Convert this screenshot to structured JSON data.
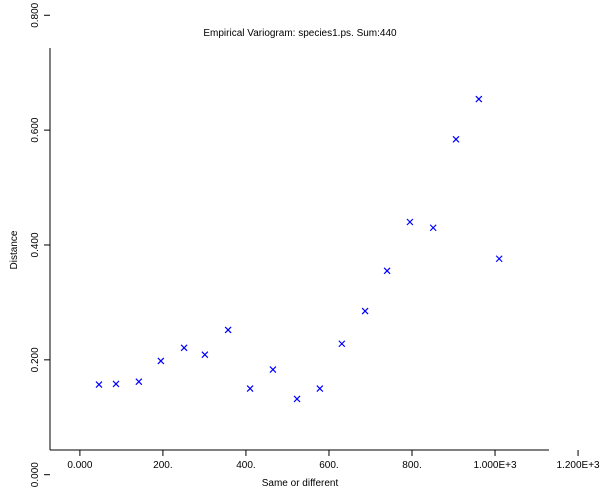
{
  "chart_data": {
    "type": "scatter",
    "title": "Empirical Variogram: species1.ps. Sum:440",
    "x_label": "Same or different",
    "y_label": "Distance",
    "series": [
      {
        "name": "variogram",
        "color": "#0000ff",
        "x": [
          46,
          87,
          142,
          195,
          251,
          301,
          357,
          410,
          465,
          523,
          578,
          631,
          687,
          740,
          795,
          851,
          906,
          961,
          1010
        ],
        "values": [
          0.157,
          0.158,
          0.162,
          0.198,
          0.221,
          0.209,
          0.252,
          0.15,
          0.183,
          0.132,
          0.15,
          0.228,
          0.285,
          0.355,
          0.44,
          0.43,
          0.584,
          0.654,
          0.376
        ]
      }
    ],
    "xlim": [
      -72,
      1130
    ],
    "ylim": [
      0.043,
      0.743
    ],
    "xticks": [
      {
        "value": 0,
        "label": "0.000"
      },
      {
        "value": 200,
        "label": "200."
      },
      {
        "value": 400,
        "label": "400."
      },
      {
        "value": 600,
        "label": "600."
      },
      {
        "value": 800,
        "label": "800."
      },
      {
        "value": 1000,
        "label": "1.000E+3"
      },
      {
        "value": 1200,
        "label": "1.200E+3"
      }
    ],
    "yticks": [
      {
        "value": 0,
        "label": "0.000"
      },
      {
        "value": 0.2,
        "label": "0.200"
      },
      {
        "value": 0.4,
        "label": "0.400"
      },
      {
        "value": 0.6,
        "label": "0.600"
      },
      {
        "value": 0.8,
        "label": "0.800"
      }
    ]
  }
}
